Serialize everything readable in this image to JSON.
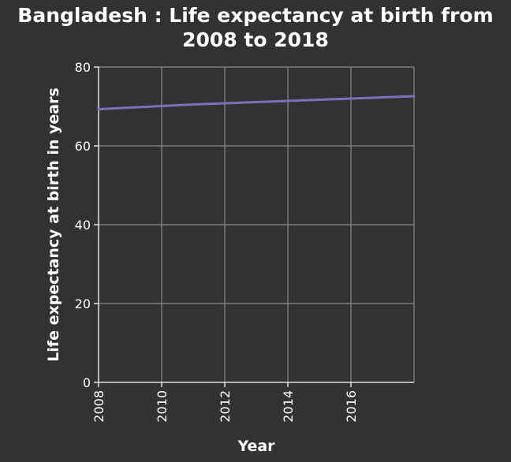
{
  "chart_data": {
    "type": "line",
    "title": "Bangladesh : Life expectancy at birth from 2008 to 2018",
    "title_lines": [
      "Bangladesh : Life expectancy at birth from",
      "2008 to 2018"
    ],
    "xlabel": "Year",
    "ylabel": "Life expectancy at birth in years",
    "x_ticks": [
      "2008",
      "2010",
      "2012",
      "2014",
      "2016"
    ],
    "y_ticks": [
      "0",
      "20",
      "40",
      "60",
      "80"
    ],
    "xlim": [
      2008,
      2018
    ],
    "ylim": [
      0,
      80
    ],
    "grid": true,
    "series": [
      {
        "color": "#7b6fbf",
        "x": [
          2008,
          2009,
          2010,
          2011,
          2012,
          2013,
          2014,
          2015,
          2016,
          2017,
          2018
        ],
        "y": [
          69.3,
          69.7,
          70.1,
          70.5,
          70.8,
          71.1,
          71.4,
          71.7,
          72.0,
          72.3,
          72.6
        ]
      }
    ]
  },
  "colors": {
    "background": "#323232",
    "text": "#ffffff",
    "grid": "#8a8a8a",
    "line": "#7b6fbf"
  }
}
